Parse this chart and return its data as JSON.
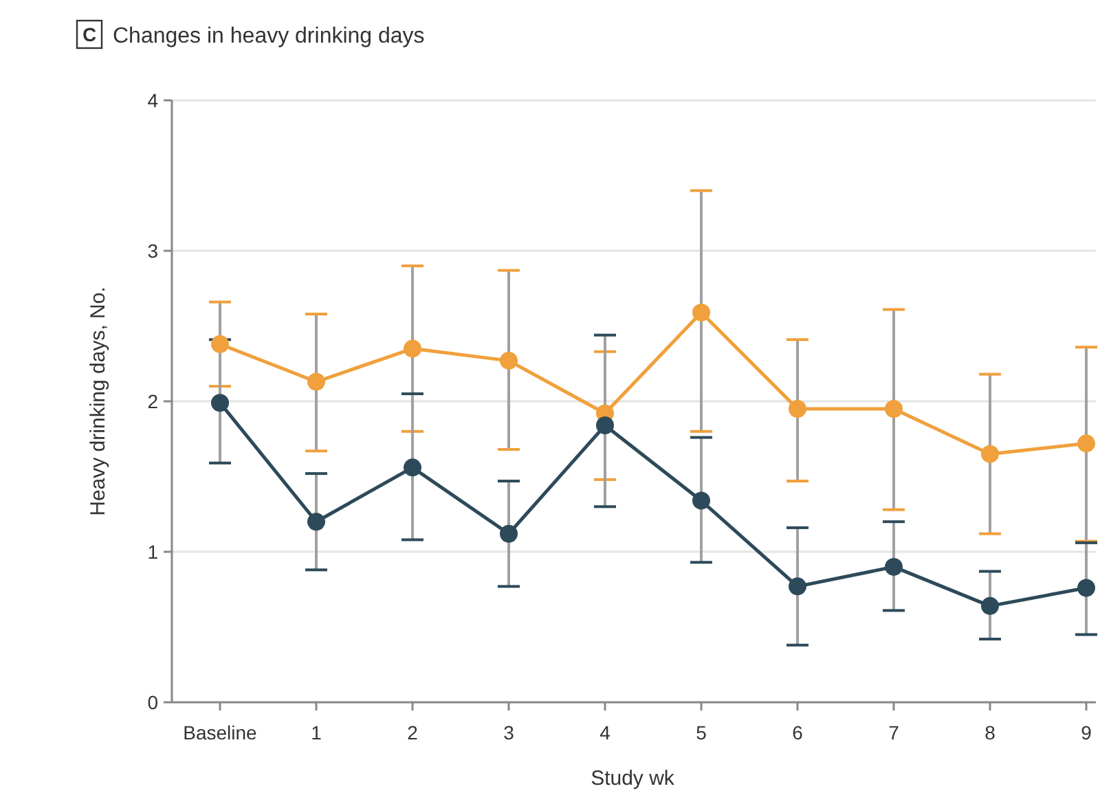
{
  "chart_data": {
    "type": "line",
    "title": "Changes in heavy drinking days",
    "annotations": [
      "C"
    ],
    "xlabel": "Study wk",
    "ylabel": "Heavy drinking days, No.",
    "categories": [
      "Baseline",
      "1",
      "2",
      "3",
      "4",
      "5",
      "6",
      "7",
      "8",
      "9"
    ],
    "ylim": [
      0,
      4
    ],
    "yticks": [
      0,
      1,
      2,
      3,
      4
    ],
    "grid": "y",
    "marker": "circle",
    "line_style": "solid",
    "series": [
      {
        "color": "#f0a03c",
        "values": [
          2.38,
          2.13,
          2.35,
          2.27,
          1.92,
          2.59,
          1.95,
          1.95,
          1.65,
          1.72
        ],
        "errors": [
          [
            2.1,
            2.66
          ],
          [
            1.67,
            2.58
          ],
          [
            1.8,
            2.9
          ],
          [
            1.68,
            2.87
          ],
          [
            1.48,
            2.33
          ],
          [
            1.8,
            3.4
          ],
          [
            1.47,
            2.41
          ],
          [
            1.28,
            2.61
          ],
          [
            1.12,
            2.18
          ],
          [
            1.07,
            2.36
          ]
        ]
      },
      {
        "color": "#2d4a5a",
        "values": [
          1.99,
          1.2,
          1.56,
          1.12,
          1.84,
          1.34,
          0.77,
          0.9,
          0.64,
          0.76
        ],
        "errors": [
          [
            1.59,
            2.41
          ],
          [
            0.88,
            1.52
          ],
          [
            1.08,
            2.05
          ],
          [
            0.77,
            1.47
          ],
          [
            1.3,
            2.44
          ],
          [
            0.93,
            1.76
          ],
          [
            0.38,
            1.16
          ],
          [
            0.61,
            1.2
          ],
          [
            0.42,
            0.87
          ],
          [
            0.45,
            1.06
          ]
        ]
      }
    ]
  }
}
